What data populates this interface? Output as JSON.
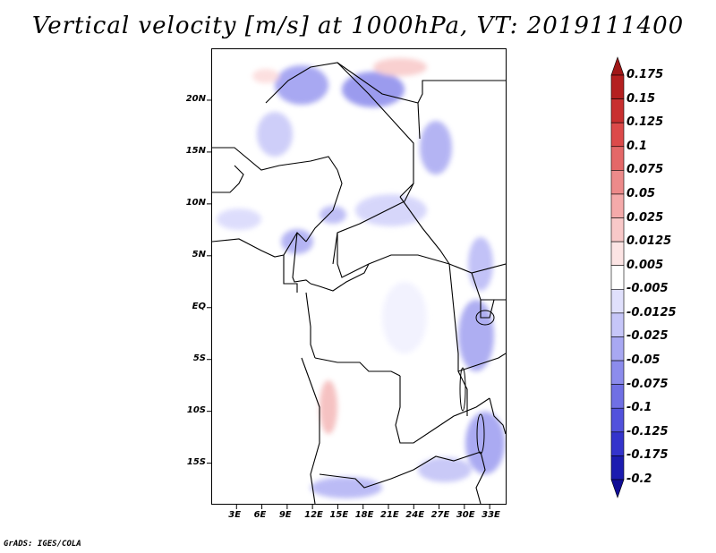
{
  "title": "Vertical velocity [m/s] at 1000hPa, VT: 2019111400",
  "credit": "GrADS: IGES/COLA",
  "map": {
    "lon_range": [
      0,
      35
    ],
    "lat_range": [
      -19,
      25
    ],
    "y_ticks": [
      {
        "lat": 20,
        "label": "20N"
      },
      {
        "lat": 15,
        "label": "15N"
      },
      {
        "lat": 10,
        "label": "10N"
      },
      {
        "lat": 5,
        "label": "5N"
      },
      {
        "lat": 0,
        "label": "EQ"
      },
      {
        "lat": -5,
        "label": "5S"
      },
      {
        "lat": -10,
        "label": "10S"
      },
      {
        "lat": -15,
        "label": "15S"
      }
    ],
    "x_ticks": [
      {
        "lon": 3,
        "label": "3E"
      },
      {
        "lon": 6,
        "label": "6E"
      },
      {
        "lon": 9,
        "label": "9E"
      },
      {
        "lon": 12,
        "label": "12E"
      },
      {
        "lon": 15,
        "label": "15E"
      },
      {
        "lon": 18,
        "label": "18E"
      },
      {
        "lon": 21,
        "label": "21E"
      },
      {
        "lon": 24,
        "label": "24E"
      },
      {
        "lon": 27,
        "label": "27E"
      },
      {
        "lon": 30,
        "label": "30E"
      },
      {
        "lon": 33,
        "label": "33E"
      }
    ]
  },
  "colorbar": {
    "levels": [
      "0.175",
      "0.15",
      "0.125",
      "0.1",
      "0.075",
      "0.05",
      "0.025",
      "0.0125",
      "0.005",
      "-0.005",
      "-0.0125",
      "-0.025",
      "-0.05",
      "-0.075",
      "-0.1",
      "-0.125",
      "-0.175",
      "-0.2"
    ],
    "colors": [
      "#a01818",
      "#b42020",
      "#c83030",
      "#dc4a4a",
      "#e46868",
      "#ec8a8a",
      "#f4aaaa",
      "#f8c8c8",
      "#fce4e4",
      "#ffffff",
      "#e0e0fc",
      "#c6c6f8",
      "#a8a8f2",
      "#8c8cec",
      "#7070e4",
      "#5252dc",
      "#3434cc",
      "#1c1cb0",
      "#100c96"
    ]
  }
}
